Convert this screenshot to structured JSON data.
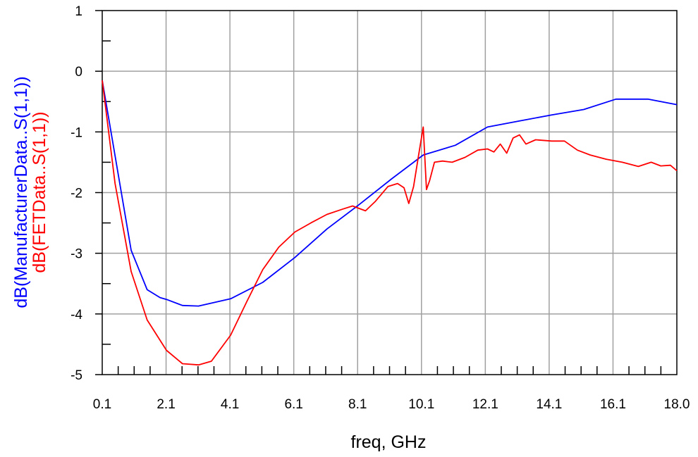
{
  "chart_data": {
    "type": "line",
    "title": "",
    "xlabel": "freq, GHz",
    "xlim": [
      0.1,
      18.0
    ],
    "ylim": [
      -5,
      1
    ],
    "x_ticks": [
      "0.1",
      "2.1",
      "4.1",
      "6.1",
      "8.1",
      "10.1",
      "12.1",
      "14.1",
      "16.1",
      "18.0"
    ],
    "y_ticks": [
      "1",
      "0",
      "-1",
      "-2",
      "-3",
      "-4",
      "-5"
    ],
    "grid": true,
    "series": [
      {
        "name": "dB(ManufacturerData..S(1,1))",
        "color": "#0000ff",
        "x": [
          0.1,
          1.0,
          1.5,
          1.9,
          2.1,
          2.6,
          3.1,
          4.1,
          5.1,
          6.1,
          7.1,
          8.1,
          9.1,
          10.1,
          11.1,
          12.1,
          13.1,
          14.1,
          15.1,
          16.1,
          17.1,
          18.0
        ],
        "y": [
          -0.15,
          -2.95,
          -3.6,
          -3.73,
          -3.76,
          -3.86,
          -3.87,
          -3.75,
          -3.48,
          -3.07,
          -2.6,
          -2.2,
          -1.78,
          -1.38,
          -1.22,
          -0.92,
          -0.82,
          -0.72,
          -0.63,
          -0.46,
          -0.46,
          -0.55
        ]
      },
      {
        "name": "dB(FETData..S(1,1))",
        "color": "#ff0000",
        "x": [
          0.1,
          0.5,
          1.0,
          1.5,
          2.1,
          2.6,
          3.1,
          3.5,
          4.1,
          4.6,
          5.1,
          5.6,
          6.1,
          6.6,
          7.1,
          7.6,
          7.9,
          8.3,
          8.6,
          9.0,
          9.3,
          9.5,
          9.65,
          9.8,
          9.95,
          10.1,
          10.2,
          10.3,
          10.45,
          10.7,
          11.0,
          11.4,
          11.8,
          12.1,
          12.3,
          12.5,
          12.7,
          12.9,
          13.1,
          13.3,
          13.6,
          14.1,
          14.5,
          14.9,
          15.3,
          15.8,
          16.3,
          16.8,
          17.2,
          17.5,
          17.8,
          18.0
        ],
        "y": [
          -0.15,
          -1.85,
          -3.3,
          -4.1,
          -4.6,
          -4.82,
          -4.84,
          -4.78,
          -4.35,
          -3.8,
          -3.27,
          -2.9,
          -2.65,
          -2.5,
          -2.36,
          -2.27,
          -2.22,
          -2.3,
          -2.15,
          -1.9,
          -1.85,
          -1.92,
          -2.18,
          -1.9,
          -1.4,
          -0.92,
          -1.95,
          -1.8,
          -1.5,
          -1.48,
          -1.5,
          -1.42,
          -1.3,
          -1.28,
          -1.33,
          -1.2,
          -1.35,
          -1.1,
          -1.05,
          -1.2,
          -1.13,
          -1.15,
          -1.15,
          -1.3,
          -1.38,
          -1.45,
          -1.5,
          -1.57,
          -1.5,
          -1.56,
          -1.55,
          -1.64
        ]
      }
    ]
  }
}
